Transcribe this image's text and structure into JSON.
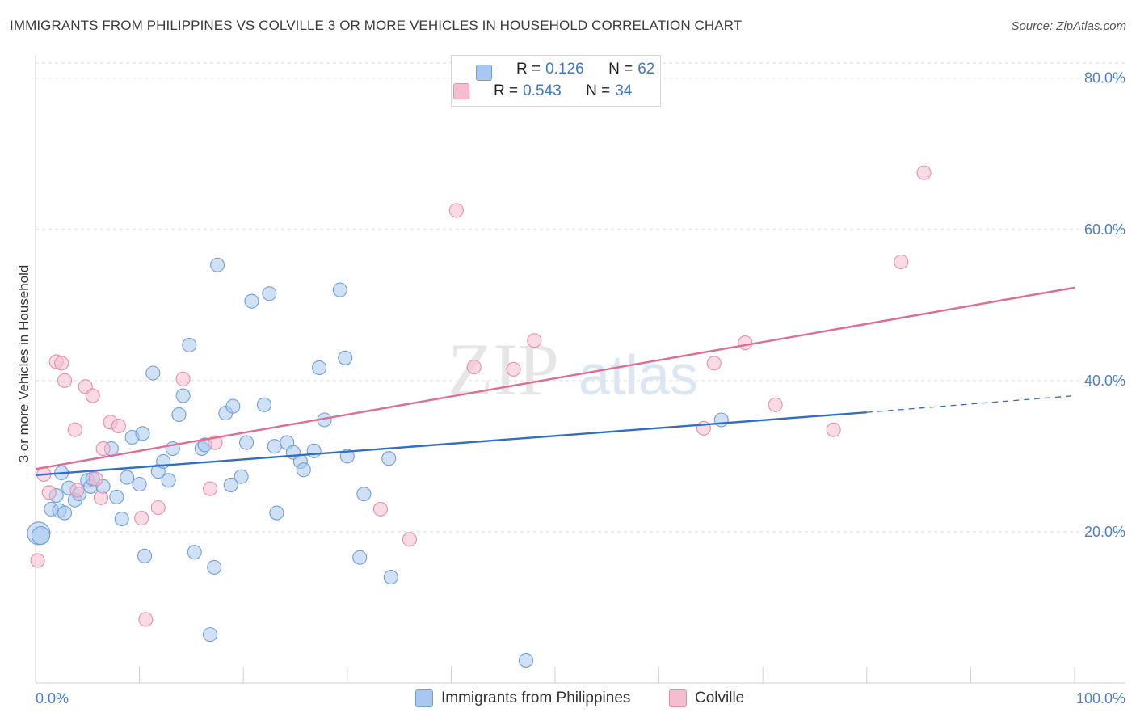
{
  "header": {
    "title": "IMMIGRANTS FROM PHILIPPINES VS COLVILLE 3 OR MORE VEHICLES IN HOUSEHOLD CORRELATION CHART",
    "source": "Source: ZipAtlas.com"
  },
  "watermark": {
    "zip": "ZIP",
    "atlas": "atlas"
  },
  "legend_top": {
    "rows": [
      {
        "r_label": "R =",
        "r_value": "0.126",
        "n_label": "N =",
        "n_value": "62"
      },
      {
        "r_label": "R =",
        "r_value": "0.543",
        "n_label": "N =",
        "n_value": "34"
      }
    ]
  },
  "legend_bottom": {
    "items": [
      {
        "label": "Immigrants from Philippines"
      },
      {
        "label": "Colville"
      }
    ]
  },
  "colors": {
    "blue_fill": "#a9c8ef",
    "blue_stroke": "#6f9fd8",
    "blue_line": "#2f6fc6",
    "pink_fill": "#f6bcd0",
    "pink_stroke": "#e58eae",
    "pink_line": "#e06b93",
    "tick_label": "#4a7fcc",
    "grid": "#dcdcdc"
  },
  "chart_data": {
    "type": "scatter",
    "title": "IMMIGRANTS FROM PHILIPPINES VS COLVILLE 3 OR MORE VEHICLES IN HOUSEHOLD CORRELATION CHART",
    "xlabel": "",
    "ylabel": "3 or more Vehicles in Household",
    "xlim": [
      0,
      100
    ],
    "ylim": [
      0,
      82
    ],
    "x_tick_labels": [
      "0.0%",
      "100.0%"
    ],
    "y_ticks": [
      20,
      40,
      60,
      80
    ],
    "y_tick_labels": [
      "20.0%",
      "40.0%",
      "60.0%",
      "80.0%"
    ],
    "grid": true,
    "legend": "top-center",
    "series": [
      {
        "name": "Immigrants from Philippines",
        "R": 0.126,
        "N": 62,
        "trend": {
          "x0": 0,
          "y0": 27.5,
          "x1": 80,
          "y1": 35.8,
          "dashed_to_x": 100,
          "dashed_to_y": 38.0
        },
        "points": [
          [
            0.3,
            19.8,
            3
          ],
          [
            0.5,
            19.5,
            2
          ],
          [
            1.5,
            23.0,
            1
          ],
          [
            2.0,
            24.8,
            1
          ],
          [
            2.3,
            22.8,
            1
          ],
          [
            2.5,
            27.8,
            1
          ],
          [
            2.8,
            22.5,
            1
          ],
          [
            3.2,
            25.8,
            1
          ],
          [
            3.8,
            24.2,
            1
          ],
          [
            4.2,
            25.0,
            1
          ],
          [
            5.0,
            26.8,
            1
          ],
          [
            5.3,
            26.0,
            1
          ],
          [
            5.5,
            27.0,
            1
          ],
          [
            6.5,
            26.0,
            1
          ],
          [
            7.3,
            31.0,
            1
          ],
          [
            7.8,
            24.6,
            1
          ],
          [
            8.3,
            21.7,
            1
          ],
          [
            8.8,
            27.2,
            1
          ],
          [
            9.3,
            32.5,
            1
          ],
          [
            10.0,
            26.3,
            1
          ],
          [
            10.3,
            33.0,
            1
          ],
          [
            10.5,
            16.8,
            1
          ],
          [
            11.3,
            41.0,
            1
          ],
          [
            11.8,
            28.0,
            1
          ],
          [
            12.3,
            29.3,
            1
          ],
          [
            12.8,
            26.8,
            1
          ],
          [
            13.2,
            31.0,
            1
          ],
          [
            13.8,
            35.5,
            1
          ],
          [
            14.2,
            38.0,
            1
          ],
          [
            14.8,
            44.7,
            1
          ],
          [
            15.3,
            17.3,
            1
          ],
          [
            16.0,
            31.0,
            1
          ],
          [
            16.3,
            31.5,
            1
          ],
          [
            16.8,
            6.4,
            1
          ],
          [
            17.2,
            15.3,
            1
          ],
          [
            17.5,
            55.3,
            1
          ],
          [
            18.3,
            35.7,
            1
          ],
          [
            18.8,
            26.2,
            1
          ],
          [
            19.0,
            36.6,
            1
          ],
          [
            19.8,
            27.3,
            1
          ],
          [
            20.3,
            31.8,
            1
          ],
          [
            20.8,
            50.5,
            1
          ],
          [
            22.0,
            36.8,
            1
          ],
          [
            22.5,
            51.5,
            1
          ],
          [
            23.0,
            31.3,
            1
          ],
          [
            23.2,
            22.5,
            1
          ],
          [
            24.2,
            31.8,
            1
          ],
          [
            24.8,
            30.5,
            1
          ],
          [
            25.5,
            29.3,
            1
          ],
          [
            25.8,
            28.2,
            1
          ],
          [
            26.8,
            30.7,
            1
          ],
          [
            27.3,
            41.7,
            1
          ],
          [
            27.8,
            34.8,
            1
          ],
          [
            29.3,
            52.0,
            1
          ],
          [
            29.8,
            43.0,
            1
          ],
          [
            30.0,
            30.0,
            1
          ],
          [
            31.2,
            16.6,
            1
          ],
          [
            31.6,
            25.0,
            1
          ],
          [
            34.0,
            29.7,
            1
          ],
          [
            34.2,
            14.0,
            1
          ],
          [
            47.2,
            3.0,
            1
          ],
          [
            66.0,
            34.8,
            1
          ]
        ]
      },
      {
        "name": "Colville",
        "R": 0.543,
        "N": 34,
        "trend": {
          "x0": 0,
          "y0": 28.3,
          "x1": 100,
          "y1": 52.3
        },
        "points": [
          [
            0.2,
            16.2,
            1
          ],
          [
            0.8,
            27.6,
            1
          ],
          [
            1.3,
            25.2,
            1
          ],
          [
            2.0,
            42.5,
            1
          ],
          [
            2.5,
            42.3,
            1
          ],
          [
            2.8,
            40.0,
            1
          ],
          [
            3.8,
            33.5,
            1
          ],
          [
            4.0,
            25.5,
            1
          ],
          [
            4.8,
            39.2,
            1
          ],
          [
            5.5,
            38.0,
            1
          ],
          [
            5.8,
            27.0,
            1
          ],
          [
            6.3,
            24.5,
            1
          ],
          [
            6.5,
            31.0,
            1
          ],
          [
            7.2,
            34.5,
            1
          ],
          [
            8.0,
            34.0,
            1
          ],
          [
            10.2,
            21.8,
            1
          ],
          [
            10.6,
            8.4,
            1
          ],
          [
            11.8,
            23.2,
            1
          ],
          [
            14.2,
            40.2,
            1
          ],
          [
            16.8,
            25.7,
            1
          ],
          [
            17.3,
            31.8,
            1
          ],
          [
            33.2,
            23.0,
            1
          ],
          [
            36.0,
            19.0,
            1
          ],
          [
            40.5,
            62.5,
            1
          ],
          [
            42.2,
            41.8,
            1
          ],
          [
            46.0,
            41.5,
            1
          ],
          [
            48.0,
            45.3,
            1
          ],
          [
            64.3,
            33.7,
            1
          ],
          [
            65.3,
            42.3,
            1
          ],
          [
            68.3,
            45.0,
            1
          ],
          [
            71.2,
            36.8,
            1
          ],
          [
            76.8,
            33.5,
            1
          ],
          [
            83.3,
            55.7,
            1
          ],
          [
            85.5,
            67.5,
            1
          ]
        ]
      }
    ]
  }
}
